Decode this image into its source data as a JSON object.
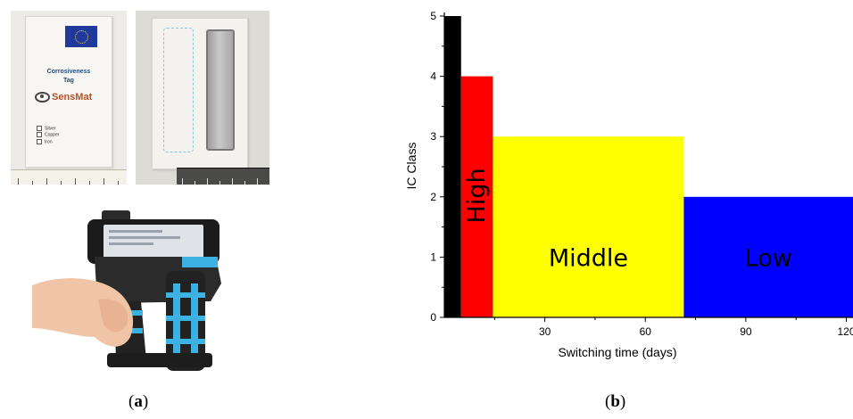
{
  "panel_a": {
    "tag": {
      "title_line1": "Corrosiveness",
      "title_line2": "Tag",
      "brand": "SensMat",
      "metals": [
        "Silver",
        "Copper",
        "Iron"
      ]
    },
    "caption": "a"
  },
  "panel_b": {
    "caption": "b"
  },
  "chart_data": {
    "type": "bar",
    "title": "",
    "xlabel": "Switching time (days)",
    "ylabel": "IC Class",
    "xlim": [
      0,
      122
    ],
    "ylim": [
      0,
      5
    ],
    "xticks": [
      30,
      60,
      90,
      120
    ],
    "yticks": [
      0,
      1,
      2,
      3,
      4,
      5
    ],
    "grid": false,
    "legend": "none",
    "bars": [
      {
        "x_start": 0,
        "x_end": 5,
        "value": 5,
        "color": "#000000",
        "label": ""
      },
      {
        "x_start": 5,
        "x_end": 14.5,
        "value": 4,
        "color": "#ff0000",
        "label": "High",
        "label_rotated": true
      },
      {
        "x_start": 14.5,
        "x_end": 71.5,
        "value": 3,
        "color": "#ffff00",
        "label": "Middle",
        "label_rotated": false
      },
      {
        "x_start": 71.5,
        "x_end": 122,
        "value": 2,
        "color": "#0000ff",
        "label": "Low",
        "label_rotated": false
      }
    ]
  }
}
